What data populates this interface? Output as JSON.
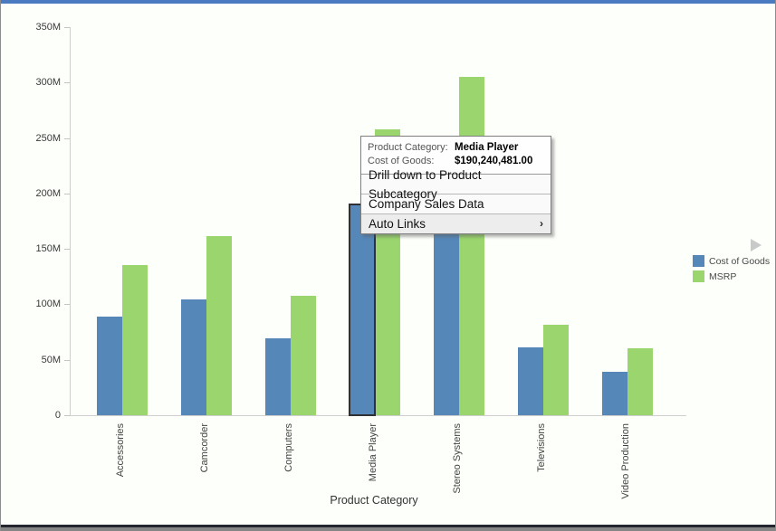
{
  "window": {
    "accent_color": "#4a7ac0"
  },
  "chart_data": {
    "type": "bar",
    "title": "",
    "xlabel": "Product Category",
    "ylabel": "",
    "ymax": 350,
    "y_ticks": [
      "350M",
      "300M",
      "250M",
      "200M",
      "150M",
      "100M",
      "50M",
      "0"
    ],
    "grid": false,
    "legend_position": "right",
    "categories": [
      "Accessories",
      "Camcorder",
      "Computers",
      "Media Player",
      "Stereo Systems",
      "Televisions",
      "Video Production"
    ],
    "series": [
      {
        "name": "Cost of Goods",
        "color": "#5588B9",
        "values": [
          89,
          104.5,
          69,
          190.240481,
          175,
          61,
          39.5
        ]
      },
      {
        "name": "MSRP",
        "color": "#9AD56E",
        "values": [
          135.5,
          161.5,
          107.5,
          258,
          305.5,
          81.5,
          60
        ]
      }
    ],
    "values_unit": "M",
    "selected_bar": {
      "category": "Media Player",
      "series": "Cost of Goods"
    }
  },
  "legend": {
    "arrow_icon": "next"
  },
  "tooltip_menu": {
    "info_rows": [
      {
        "label": "Product Category:",
        "value": "Media Player"
      },
      {
        "label": "Cost of Goods:",
        "value": "$190,240,481.00"
      }
    ],
    "items": [
      {
        "label": "Drill down to Product Subcategory",
        "has_submenu": false
      },
      {
        "label": "Company Sales Data",
        "has_submenu": false
      },
      {
        "label": "Auto Links",
        "has_submenu": true
      }
    ],
    "submenu_arrow": "›"
  }
}
